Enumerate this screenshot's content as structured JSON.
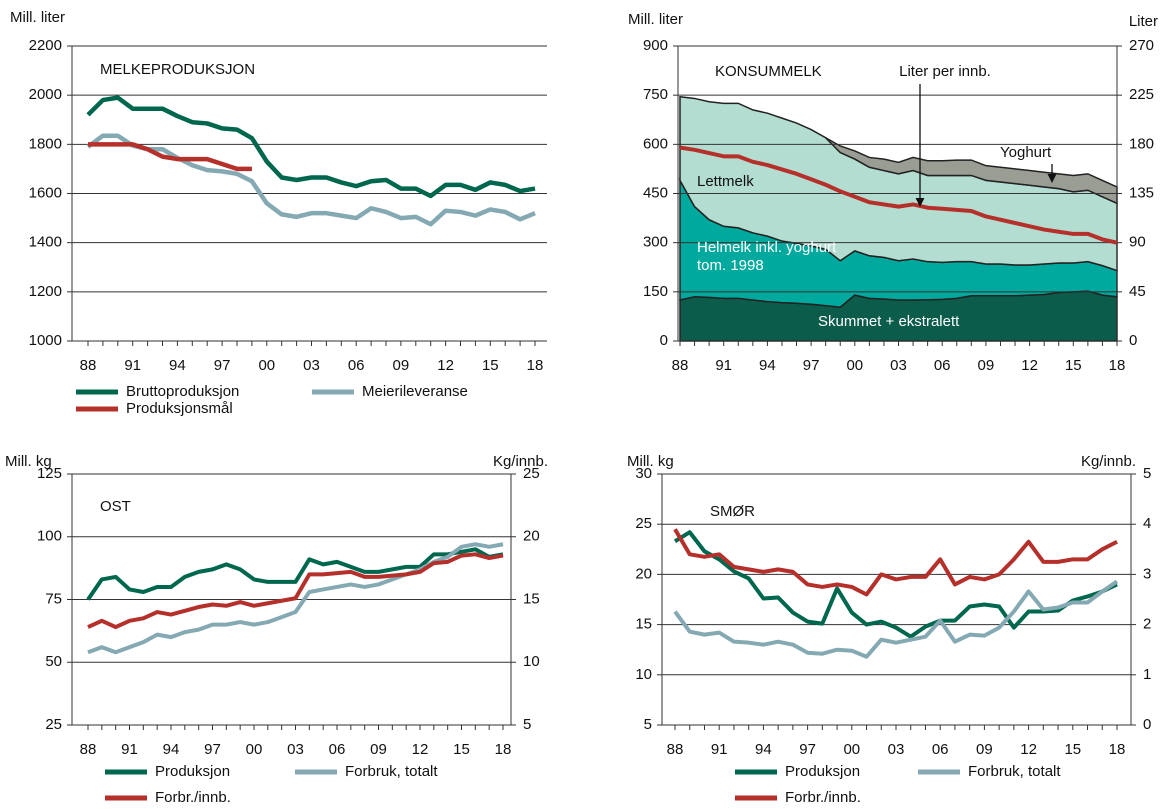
{
  "chart_data": [
    {
      "type": "line",
      "annotations": [
        "MELKEPRODUKSJON"
      ],
      "ylabel": "Mill. liter",
      "categories": [
        "88",
        null,
        null,
        "91",
        null,
        null,
        "94",
        null,
        null,
        "97",
        null,
        null,
        "00",
        null,
        null,
        "03",
        null,
        null,
        "06",
        null,
        null,
        "09",
        null,
        null,
        "12",
        null,
        null,
        "15",
        null,
        null,
        "18"
      ],
      "ylim": [
        1000,
        2200
      ],
      "yticks": [
        1000,
        1200,
        1400,
        1600,
        1800,
        2000,
        2200
      ],
      "grid": true,
      "legend": "bottom",
      "series": [
        {
          "name": "Bruttoproduksjon",
          "color": "#00674f",
          "values": [
            1920,
            1980,
            1990,
            1945,
            1945,
            1945,
            1915,
            1890,
            1885,
            1865,
            1860,
            1825,
            1730,
            1665,
            1655,
            1665,
            1665,
            1645,
            1630,
            1650,
            1655,
            1620,
            1620,
            1590,
            1635,
            1635,
            1615,
            1645,
            1635,
            1610,
            1620
          ]
        },
        {
          "name": "Meierileveranse",
          "color": "#85a9b3",
          "values": [
            1790,
            1835,
            1835,
            1795,
            1780,
            1780,
            1745,
            1715,
            1695,
            1690,
            1680,
            1650,
            1560,
            1515,
            1505,
            1520,
            1520,
            1510,
            1500,
            1540,
            1525,
            1500,
            1505,
            1475,
            1530,
            1525,
            1510,
            1535,
            1525,
            1495,
            1520
          ]
        },
        {
          "name": "Produksjonsmål",
          "color": "#b5302a",
          "values": [
            1800,
            1800,
            1800,
            1800,
            1780,
            1750,
            1740,
            1740,
            1740,
            1720,
            1700,
            1700,
            null,
            null,
            null,
            null,
            null,
            null,
            null,
            null,
            null,
            null,
            null,
            null,
            null,
            null,
            null,
            null,
            null,
            null,
            null
          ]
        }
      ]
    },
    {
      "type": "area",
      "stacked": true,
      "annotations": [
        "KONSUMMELK"
      ],
      "ylabel": "Mill. liter",
      "y2label": "Liter",
      "categories": [
        "88",
        null,
        null,
        "91",
        null,
        null,
        "94",
        null,
        null,
        "97",
        null,
        null,
        "00",
        null,
        null,
        "03",
        null,
        null,
        "06",
        null,
        null,
        "09",
        null,
        null,
        "12",
        null,
        null,
        "15",
        null,
        null,
        "18"
      ],
      "ylim": [
        0,
        900
      ],
      "yticks": [
        0,
        150,
        300,
        450,
        600,
        750,
        900
      ],
      "y2lim": [
        0,
        270
      ],
      "y2ticks": [
        0,
        45,
        90,
        135,
        180,
        225,
        270
      ],
      "grid": true,
      "legend": "none",
      "series": [
        {
          "name": "Skummet + ekstralett",
          "color": "#0b5c4b",
          "values": [
            125,
            135,
            133,
            130,
            130,
            125,
            120,
            117,
            115,
            112,
            108,
            103,
            140,
            130,
            128,
            125,
            125,
            126,
            127,
            130,
            138,
            138,
            138,
            138,
            140,
            142,
            148,
            150,
            152,
            140,
            135
          ]
        },
        {
          "name": "Helmelk inkl. yoghurt tom. 1998",
          "color": "#00a99d",
          "values": [
            365,
            275,
            237,
            220,
            215,
            205,
            200,
            188,
            183,
            178,
            172,
            142,
            135,
            130,
            127,
            120,
            125,
            116,
            113,
            112,
            104,
            97,
            97,
            94,
            92,
            93,
            90,
            88,
            90,
            90,
            80
          ]
        },
        {
          "name": "Lettmelk",
          "color": "#b4ddd2",
          "values": [
            255,
            330,
            360,
            375,
            380,
            375,
            375,
            375,
            367,
            355,
            340,
            330,
            280,
            270,
            265,
            265,
            270,
            263,
            265,
            263,
            263,
            255,
            250,
            248,
            243,
            235,
            227,
            217,
            218,
            210,
            205
          ]
        },
        {
          "name": "Yoghurt",
          "color": "#9a9d94",
          "values": [
            null,
            null,
            null,
            null,
            null,
            null,
            null,
            null,
            null,
            null,
            0,
            20,
            25,
            30,
            35,
            35,
            40,
            45,
            45,
            47,
            47,
            45,
            45,
            45,
            45,
            45,
            45,
            50,
            50,
            50,
            50
          ]
        },
        {
          "name": "Liter per innb.",
          "type": "line",
          "axis": "y2",
          "color": "#b5302a",
          "values": [
            177,
            175,
            172,
            169,
            169,
            164,
            161,
            157,
            153,
            148,
            143,
            137,
            132,
            127,
            125,
            123,
            125,
            122,
            121,
            120,
            119,
            114,
            111,
            108,
            105,
            102,
            100,
            98,
            98,
            93,
            90
          ]
        }
      ]
    },
    {
      "type": "line",
      "annotations": [
        "OST"
      ],
      "ylabel": "Mill. kg",
      "y2label": "Kg/innb.",
      "categories": [
        "88",
        null,
        null,
        "91",
        null,
        null,
        "94",
        null,
        null,
        "97",
        null,
        null,
        "00",
        null,
        null,
        "03",
        null,
        null,
        "06",
        null,
        null,
        "09",
        null,
        null,
        "12",
        null,
        null,
        "15",
        null,
        null,
        "18"
      ],
      "ylim": [
        25,
        125
      ],
      "yticks": [
        25,
        50,
        75,
        100,
        125
      ],
      "y2lim": [
        5,
        25
      ],
      "y2ticks": [
        5,
        10,
        15,
        20,
        25
      ],
      "grid": true,
      "legend": "bottom",
      "series": [
        {
          "name": "Produksjon",
          "color": "#00674f",
          "values": [
            75,
            83,
            84,
            79,
            78,
            80,
            80,
            84,
            86,
            87,
            89,
            87,
            83,
            82,
            82,
            82,
            91,
            89,
            90,
            88,
            86,
            86,
            87,
            88,
            88,
            93,
            93,
            94,
            95,
            92,
            93
          ]
        },
        {
          "name": "Forbruk, totalt",
          "color": "#85a9b3",
          "values": [
            54,
            56,
            54,
            56,
            58,
            61,
            60,
            62,
            63,
            65,
            65,
            66,
            65,
            66,
            68,
            70,
            78,
            79,
            80,
            81,
            80,
            81,
            83,
            85,
            87,
            90,
            92,
            96,
            97,
            96,
            97
          ]
        },
        {
          "name": "Forbr./innb.",
          "axis": "y2",
          "color": "#b5302a",
          "values": [
            12.8,
            13.3,
            12.8,
            13.3,
            13.5,
            14.0,
            13.8,
            14.1,
            14.4,
            14.6,
            14.5,
            14.8,
            14.5,
            14.7,
            14.9,
            15.1,
            17.0,
            17.0,
            17.1,
            17.2,
            16.8,
            16.8,
            16.9,
            17.0,
            17.2,
            17.9,
            18.0,
            18.5,
            18.6,
            18.3,
            18.5
          ]
        }
      ]
    },
    {
      "type": "line",
      "annotations": [
        "SMØR"
      ],
      "ylabel": "Mill. kg",
      "y2label": "Kg/innb.",
      "categories": [
        "88",
        null,
        null,
        "91",
        null,
        null,
        "94",
        null,
        null,
        "97",
        null,
        null,
        "00",
        null,
        null,
        "03",
        null,
        null,
        "06",
        null,
        null,
        "09",
        null,
        null,
        "12",
        null,
        null,
        "15",
        null,
        null,
        "18"
      ],
      "ylim": [
        5,
        30
      ],
      "yticks": [
        5,
        10,
        15,
        20,
        25,
        30
      ],
      "y2lim": [
        0,
        5
      ],
      "y2ticks": [
        0,
        1,
        2,
        3,
        4,
        5
      ],
      "grid": true,
      "legend": "bottom",
      "series": [
        {
          "name": "Produksjon",
          "color": "#00674f",
          "values": [
            23.3,
            24.2,
            22.3,
            21.5,
            20.3,
            19.6,
            17.6,
            17.7,
            16.2,
            15.3,
            15.1,
            18.6,
            16.2,
            15.0,
            15.3,
            14.7,
            13.8,
            14.8,
            15.4,
            15.4,
            16.8,
            17.0,
            16.8,
            14.7,
            16.3,
            16.3,
            16.4,
            17.4,
            17.8,
            18.3,
            19.0
          ]
        },
        {
          "name": "Forbruk, totalt",
          "color": "#85a9b3",
          "values": [
            16.3,
            14.3,
            14.0,
            14.2,
            13.3,
            13.2,
            13.0,
            13.3,
            13.0,
            12.2,
            12.1,
            12.5,
            12.4,
            11.8,
            13.5,
            13.2,
            13.5,
            13.8,
            15.4,
            13.3,
            14.0,
            13.9,
            14.7,
            16.3,
            18.3,
            16.5,
            16.7,
            17.2,
            17.2,
            18.3,
            19.3
          ]
        },
        {
          "name": "Forbr./innb.",
          "axis": "y2",
          "color": "#b5302a",
          "values": [
            3.9,
            3.4,
            3.35,
            3.4,
            3.15,
            3.1,
            3.05,
            3.1,
            3.05,
            2.8,
            2.75,
            2.8,
            2.75,
            2.6,
            3.0,
            2.9,
            2.95,
            2.95,
            3.3,
            2.8,
            2.95,
            2.9,
            3.0,
            3.3,
            3.65,
            3.25,
            3.25,
            3.3,
            3.3,
            3.5,
            3.65
          ]
        }
      ]
    }
  ]
}
